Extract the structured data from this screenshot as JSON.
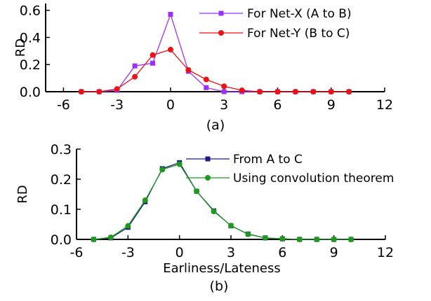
{
  "chart_data": [
    {
      "type": "line",
      "caption": "(a)",
      "xlabel": "",
      "ylabel": "RD",
      "xlim": [
        -7,
        12
      ],
      "ylim": [
        0,
        0.65
      ],
      "xticks": [
        -6,
        -3,
        0,
        3,
        6,
        9,
        12
      ],
      "xtick_labels": [
        "-6",
        "-3",
        "0",
        "3",
        "6",
        "9",
        "12"
      ],
      "yticks": [
        0.0,
        0.2,
        0.4,
        0.6
      ],
      "ytick_labels": [
        "0.0",
        "0.2",
        "0.4",
        "0.6"
      ],
      "grid": false,
      "legend_position": "top-right",
      "series": [
        {
          "name": "For Net-X (A to B)",
          "color": "#9b30ff",
          "marker": "square",
          "x": [
            -5,
            -4,
            -3,
            -2,
            -1,
            0,
            1,
            2,
            3,
            4,
            5,
            6,
            7,
            8,
            9,
            10
          ],
          "y": [
            0.0,
            0.0,
            0.01,
            0.19,
            0.21,
            0.57,
            0.15,
            0.03,
            0.0,
            0.0,
            0.0,
            0.0,
            0.0,
            0.0,
            0.0,
            0.0
          ]
        },
        {
          "name": "For Net-Y (B to C)",
          "color": "#ee1111",
          "marker": "circle",
          "x": [
            -5,
            -4,
            -3,
            -2,
            -1,
            0,
            1,
            2,
            3,
            4,
            5,
            6,
            7,
            8,
            9,
            10
          ],
          "y": [
            0.0,
            0.0,
            0.02,
            0.11,
            0.27,
            0.31,
            0.16,
            0.09,
            0.04,
            0.01,
            0.0,
            0.0,
            0.0,
            0.0,
            0.0,
            0.0
          ]
        }
      ]
    },
    {
      "type": "line",
      "caption": "(b)",
      "xlabel": "Earliness/Lateness",
      "ylabel": "RD",
      "xlim": [
        -6,
        12
      ],
      "ylim": [
        0,
        0.3
      ],
      "xticks": [
        -6,
        -3,
        0,
        3,
        6,
        9,
        12
      ],
      "xtick_labels": [
        "-6",
        "-3",
        "0",
        "3",
        "6",
        "9",
        "12"
      ],
      "yticks": [
        0.0,
        0.1,
        0.2,
        0.3
      ],
      "ytick_labels": [
        "0.0",
        "0.1",
        "0.2",
        "0.3"
      ],
      "grid": false,
      "legend_position": "top-right",
      "series": [
        {
          "name": "From A to C",
          "color": "#1a1a80",
          "marker": "square",
          "x": [
            -5,
            -4,
            -3,
            -2,
            -1,
            0,
            1,
            2,
            3,
            4,
            5,
            6,
            7,
            8,
            9,
            10
          ],
          "y": [
            0.0,
            0.005,
            0.04,
            0.125,
            0.235,
            0.255,
            0.16,
            0.095,
            0.045,
            0.018,
            0.005,
            0.002,
            0.0,
            0.0,
            0.0,
            0.0
          ]
        },
        {
          "name": "Using convolution theorem",
          "color": "#1e9a1e",
          "marker": "circle",
          "x": [
            -5,
            -4,
            -3,
            -2,
            -1,
            0,
            1,
            2,
            3,
            4,
            5,
            6,
            7,
            8,
            9,
            10
          ],
          "y": [
            0.0,
            0.007,
            0.045,
            0.13,
            0.232,
            0.25,
            0.16,
            0.093,
            0.046,
            0.017,
            0.005,
            0.002,
            0.0,
            0.0,
            0.0,
            0.0
          ]
        }
      ]
    }
  ]
}
